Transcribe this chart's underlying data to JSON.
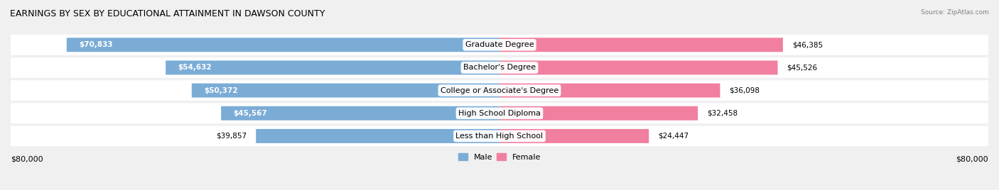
{
  "title": "EARNINGS BY SEX BY EDUCATIONAL ATTAINMENT IN DAWSON COUNTY",
  "source": "Source: ZipAtlas.com",
  "categories": [
    "Less than High School",
    "High School Diploma",
    "College or Associate's Degree",
    "Bachelor's Degree",
    "Graduate Degree"
  ],
  "male_values": [
    39857,
    45567,
    50372,
    54632,
    70833
  ],
  "female_values": [
    24447,
    32458,
    36098,
    45526,
    46385
  ],
  "male_color": "#7aacd6",
  "female_color": "#f07fa0",
  "max_value": 80000,
  "axis_label": "$80,000",
  "background_color": "#f0f0f0",
  "bar_background": "#e8e8e8",
  "title_fontsize": 9,
  "label_fontsize": 8,
  "value_fontsize": 7.5
}
